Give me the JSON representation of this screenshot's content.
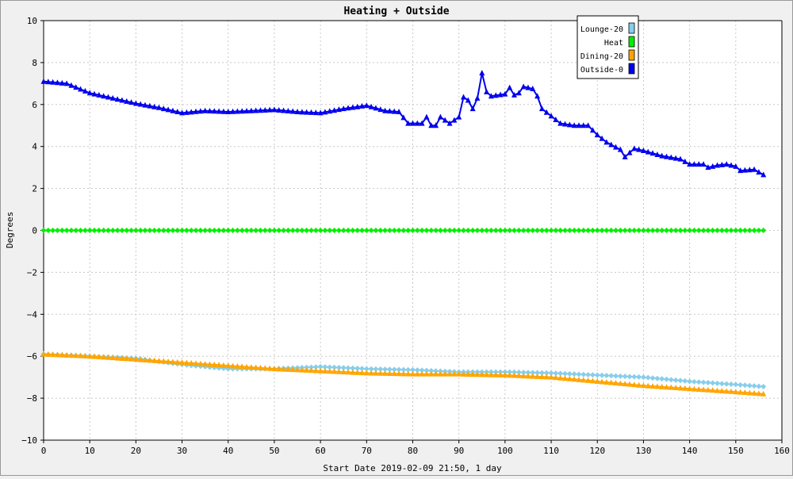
{
  "chart_data": {
    "type": "line",
    "title": "Heating + Outside",
    "xlabel": "Start Date 2019-02-09 21:50, 1 day",
    "ylabel": "Degrees",
    "xlim": [
      0,
      160
    ],
    "ylim": [
      -10,
      10
    ],
    "x_ticks": [
      0,
      10,
      20,
      30,
      40,
      50,
      60,
      70,
      80,
      90,
      100,
      110,
      120,
      130,
      140,
      150,
      160
    ],
    "y_ticks": [
      -10,
      -8,
      -6,
      -4,
      -2,
      0,
      2,
      4,
      6,
      8,
      10
    ],
    "x_tick_labels": [
      "0",
      "10",
      "20",
      "30",
      "40",
      "50",
      "60",
      "70",
      "80",
      "90",
      "100",
      "110",
      "120",
      "130",
      "140",
      "150",
      "160"
    ],
    "y_tick_labels": [
      "−10",
      "−8",
      "−6",
      "−4",
      "−2",
      "0",
      "2",
      "4",
      "6",
      "8",
      "10"
    ],
    "grid": true,
    "legend_position": "top-right",
    "series": [
      {
        "name": "Lounge-20",
        "color": "#87ceeb",
        "marker": "diamond",
        "points": [
          [
            0,
            -5.9
          ],
          [
            10,
            -6.0
          ],
          [
            20,
            -6.1
          ],
          [
            30,
            -6.4
          ],
          [
            40,
            -6.6
          ],
          [
            50,
            -6.6
          ],
          [
            60,
            -6.5
          ],
          [
            70,
            -6.6
          ],
          [
            80,
            -6.65
          ],
          [
            90,
            -6.75
          ],
          [
            100,
            -6.75
          ],
          [
            110,
            -6.8
          ],
          [
            120,
            -6.9
          ],
          [
            130,
            -7.0
          ],
          [
            140,
            -7.2
          ],
          [
            150,
            -7.35
          ],
          [
            156,
            -7.45
          ]
        ]
      },
      {
        "name": "Heat",
        "color": "#00ee00",
        "marker": "diamond",
        "points": [
          [
            0,
            0
          ],
          [
            156,
            0
          ]
        ]
      },
      {
        "name": "Dining-20",
        "color": "#ffa500",
        "marker": "triangle",
        "points": [
          [
            0,
            -5.9
          ],
          [
            10,
            -6.0
          ],
          [
            20,
            -6.15
          ],
          [
            30,
            -6.3
          ],
          [
            40,
            -6.45
          ],
          [
            50,
            -6.6
          ],
          [
            60,
            -6.7
          ],
          [
            70,
            -6.8
          ],
          [
            80,
            -6.85
          ],
          [
            90,
            -6.85
          ],
          [
            100,
            -6.9
          ],
          [
            110,
            -7.0
          ],
          [
            120,
            -7.2
          ],
          [
            130,
            -7.4
          ],
          [
            140,
            -7.55
          ],
          [
            150,
            -7.7
          ],
          [
            156,
            -7.8
          ]
        ]
      },
      {
        "name": "Outside-0",
        "color": "#0000ee",
        "marker": "triangle",
        "points": [
          [
            0,
            7.1
          ],
          [
            5,
            7.0
          ],
          [
            10,
            6.55
          ],
          [
            15,
            6.3
          ],
          [
            20,
            6.05
          ],
          [
            25,
            5.85
          ],
          [
            30,
            5.6
          ],
          [
            35,
            5.7
          ],
          [
            40,
            5.65
          ],
          [
            45,
            5.7
          ],
          [
            50,
            5.75
          ],
          [
            55,
            5.65
          ],
          [
            60,
            5.6
          ],
          [
            65,
            5.8
          ],
          [
            70,
            5.95
          ],
          [
            74,
            5.7
          ],
          [
            77,
            5.65
          ],
          [
            79,
            5.1
          ],
          [
            82,
            5.1
          ],
          [
            83,
            5.4
          ],
          [
            84,
            5.0
          ],
          [
            85,
            5.0
          ],
          [
            86,
            5.4
          ],
          [
            88,
            5.1
          ],
          [
            90,
            5.4
          ],
          [
            91,
            6.35
          ],
          [
            92,
            6.2
          ],
          [
            93,
            5.8
          ],
          [
            94,
            6.3
          ],
          [
            95,
            7.5
          ],
          [
            96,
            6.6
          ],
          [
            97,
            6.4
          ],
          [
            100,
            6.5
          ],
          [
            101,
            6.8
          ],
          [
            102,
            6.45
          ],
          [
            103,
            6.55
          ],
          [
            104,
            6.85
          ],
          [
            106,
            6.75
          ],
          [
            107,
            6.4
          ],
          [
            108,
            5.8
          ],
          [
            110,
            5.45
          ],
          [
            112,
            5.1
          ],
          [
            115,
            5.0
          ],
          [
            118,
            5.0
          ],
          [
            120,
            4.55
          ],
          [
            122,
            4.2
          ],
          [
            125,
            3.85
          ],
          [
            126,
            3.5
          ],
          [
            128,
            3.9
          ],
          [
            130,
            3.8
          ],
          [
            134,
            3.55
          ],
          [
            138,
            3.4
          ],
          [
            140,
            3.15
          ],
          [
            143,
            3.15
          ],
          [
            144,
            3.0
          ],
          [
            146,
            3.1
          ],
          [
            148,
            3.15
          ],
          [
            150,
            3.05
          ],
          [
            151,
            2.85
          ],
          [
            154,
            2.9
          ],
          [
            156,
            2.65
          ]
        ]
      }
    ]
  }
}
